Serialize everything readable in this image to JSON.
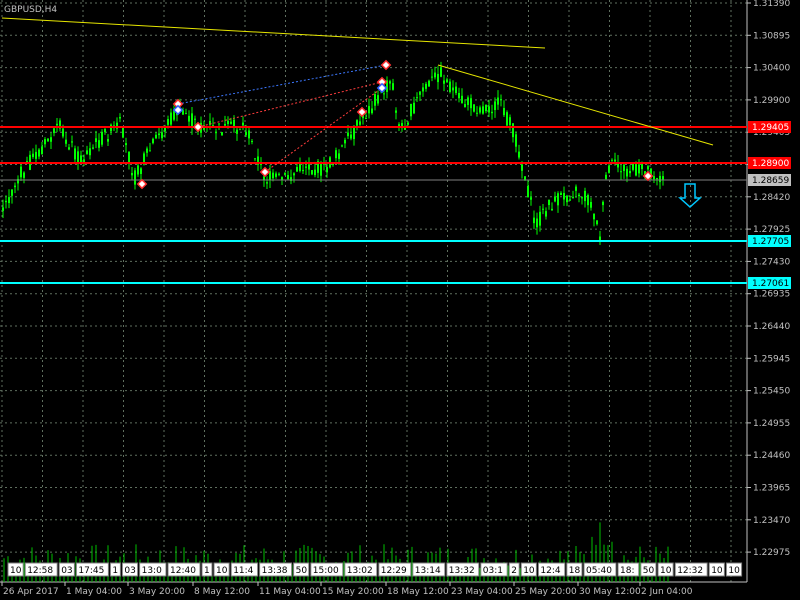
{
  "symbol_label": "GBPUSD,H4",
  "price_axis": {
    "ticks": [
      "1.31390",
      "1.30895",
      "1.30400",
      "1.29900",
      "1.29405",
      "1.28910",
      "1.28420",
      "1.27925",
      "1.27430",
      "1.26935",
      "1.26440",
      "1.25945",
      "1.25450",
      "1.24955",
      "1.24460",
      "1.23965",
      "1.23470",
      "1.22975"
    ]
  },
  "time_axis": {
    "labels": [
      "26 Apr 2017",
      "1 May 04:00",
      "3 May 20:00",
      "8 May 12:00",
      "11 May 04:00",
      "15 May 20:00",
      "18 May 12:00",
      "23 May 04:00",
      "25 May 20:00",
      "30 May 12:00",
      "2 Jun 04:00"
    ]
  },
  "level_tags": [
    {
      "text": "1.29405",
      "color": "#ff0000",
      "text_color": "#ffffff"
    },
    {
      "text": "1.28900",
      "color": "#ff0000",
      "text_color": "#ffffff"
    },
    {
      "text": "1.28659",
      "color": "#c0c0c0",
      "text_color": "#000000"
    },
    {
      "text": "1.27705",
      "color": "#00ffff",
      "text_color": "#000000"
    },
    {
      "text": "1.27061",
      "color": "#00ffff",
      "text_color": "#000000"
    }
  ],
  "timestamp_labels": [
    "10",
    "12:58",
    "03",
    "17:45",
    "1",
    "03",
    "13:0",
    "12:40",
    "1",
    "10",
    "11:4",
    "13:38",
    "50",
    "15:00",
    "13:02",
    "12:29",
    "13:14",
    "13:32",
    "03:1",
    "2",
    "10",
    "12:4",
    "18",
    "05:40",
    "18:",
    "50",
    "10",
    "12:32",
    "10",
    "10",
    "2",
    "12"
  ],
  "colors": {
    "background": "#000000",
    "candles": "#00ff00",
    "grid": "#5f6f5f",
    "axis": "#c0c0c0",
    "support": "#00ffff",
    "resistance": "#ff0000",
    "trendline": "#e6e600",
    "arrow": "#00c8ff"
  },
  "icons": [
    "down-arrow-icon",
    "trade-marker-icon"
  ]
}
